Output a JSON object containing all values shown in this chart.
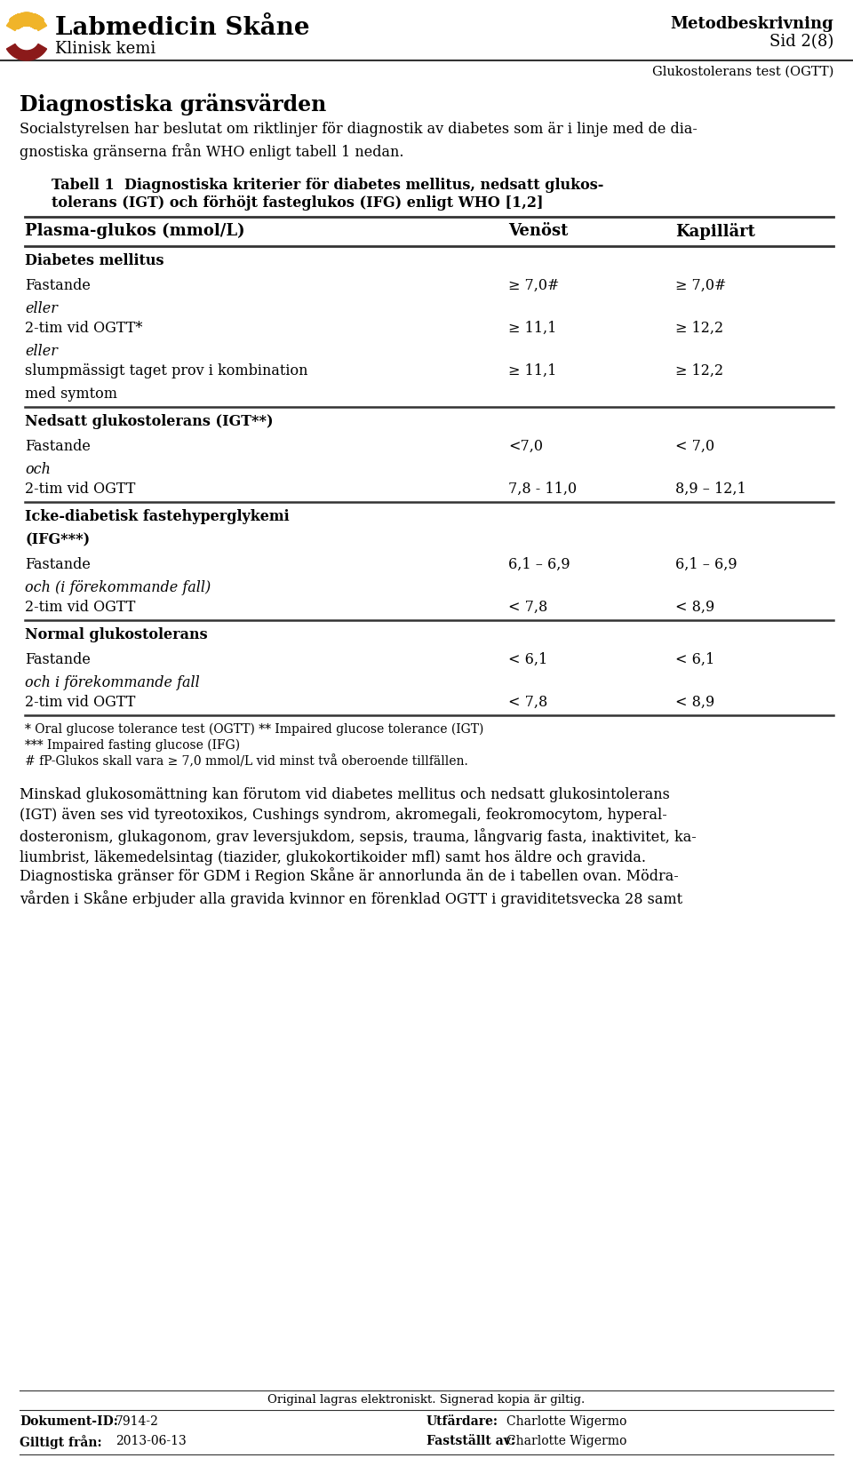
{
  "bg_color": "#ffffff",
  "header": {
    "org_name": "Labmedicin Skåne",
    "sub_name": "Klinisk kemi",
    "doc_type": "Metodbeskrivning",
    "page": "Sid 2(8)",
    "sub_title": "Glukostolerans test (OGTT)"
  },
  "section_title": "Diagnostiska gränsvärden",
  "intro_text": "Socialstyrelsen har beslutat om riktlinjer för diagnostik av diabetes som är i linje med de dia-\ngnostiska gränserna från WHO enligt tabell 1 nedan.",
  "table_title_line1": "Tabell 1  Diagnostiska kriterier för diabetes mellitus, nedsatt glukos-",
  "table_title_line2": "tolerans (IGT) och förhöjt fasteglukos (IFG) enligt WHO [1,2]",
  "table_col1": "Plasma-glukos (mmol/L)",
  "table_col2": "Venöst",
  "table_col3": "Kapillärt",
  "table_rows": [
    {
      "type": "section",
      "col1": "Diabetes mellitus",
      "col2": "",
      "col3": ""
    },
    {
      "type": "data",
      "col1": "Fastande",
      "col2": "≥ 7,0#",
      "col3": "≥ 7,0#"
    },
    {
      "type": "italic",
      "col1": "eller",
      "col2": "",
      "col3": ""
    },
    {
      "type": "data",
      "col1": "2-tim vid OGTT*",
      "col2": "≥ 11,1",
      "col3": "≥ 12,2"
    },
    {
      "type": "italic",
      "col1": "eller",
      "col2": "",
      "col3": ""
    },
    {
      "type": "data2",
      "col1": "slumpmässigt taget prov i kombination",
      "col1b": "med symtom",
      "col2": "≥ 11,1",
      "col3": "≥ 12,2"
    },
    {
      "type": "section",
      "col1": "Nedsatt glukostolerans (IGT**)",
      "col2": "",
      "col3": ""
    },
    {
      "type": "data",
      "col1": "Fastande",
      "col2": "<7,0",
      "col3": "< 7,0"
    },
    {
      "type": "italic",
      "col1": "och",
      "col2": "",
      "col3": ""
    },
    {
      "type": "data",
      "col1": "2-tim vid OGTT",
      "col2": "7,8 - 11,0",
      "col3": "8,9 – 12,1"
    },
    {
      "type": "section2",
      "col1": "Icke-diabetisk fastehyperglykemi",
      "col1b": "(IFG***)",
      "col2": "",
      "col3": ""
    },
    {
      "type": "data",
      "col1": "Fastande",
      "col2": "6,1 – 6,9",
      "col3": "6,1 – 6,9"
    },
    {
      "type": "italic",
      "col1": "och (i förekommande fall)",
      "col2": "",
      "col3": ""
    },
    {
      "type": "data",
      "col1": "2-tim vid OGTT",
      "col2": "< 7,8",
      "col3": "< 8,9"
    },
    {
      "type": "section",
      "col1": "Normal glukostolerans",
      "col2": "",
      "col3": ""
    },
    {
      "type": "data",
      "col1": "Fastande",
      "col2": "< 6,1",
      "col3": "< 6,1"
    },
    {
      "type": "italic",
      "col1": "och i förekommande fall",
      "col2": "",
      "col3": ""
    },
    {
      "type": "data",
      "col1": "2-tim vid OGTT",
      "col2": "< 7,8",
      "col3": "< 8,9"
    }
  ],
  "footnote1": "* Oral glucose tolerance test (OGTT) ** Impaired glucose tolerance (IGT)",
  "footnote2": "*** Impaired fasting glucose (IFG)",
  "footnote3": "# fP-Glukos skall vara ≥ 7,0 mmol/L vid minst två oberoende tillfällen.",
  "body_text": "Minskad glukosomättning kan förutom vid diabetes mellitus och nedsatt glukosintolerans\n(IGT) även ses vid tyreotoxikos, Cushings syndrom, akromegali, feokromocytom, hyperal-\ndosteronism, glukagonom, grav leversjukdom, sepsis, trauma, långvarig fasta, inaktivitet, ka-\nliumbrist, läkemedelsintag (tiazider, glukokortikoider mfl) samt hos äldre och gravida.",
  "body_text2": "Diagnostiska gränser för GDM i Region Skåne är annorlunda än de i tabellen ovan. Mödra-\nvården i Skåne erbjuder alla gravida kvinnor en förenklad OGTT i graviditetsvecka 28 samt",
  "footer_center": "Original lagras elektroniskt. Signerad kopia är giltig.",
  "footer_doc_label": "Dokument-ID:",
  "footer_doc_val": "7914-2",
  "footer_utf_label": "Utfärdare:",
  "footer_utf_val": "Charlotte Wigermo",
  "footer_gilt_label": "Giltigt från:",
  "footer_gilt_val": "2013-06-13",
  "footer_fast_label": "Fastställt av:",
  "footer_fast_val": "Charlotte Wigermo",
  "logo_yellow": "#F0B429",
  "logo_red": "#8B1A1A",
  "line_color": "#333333"
}
